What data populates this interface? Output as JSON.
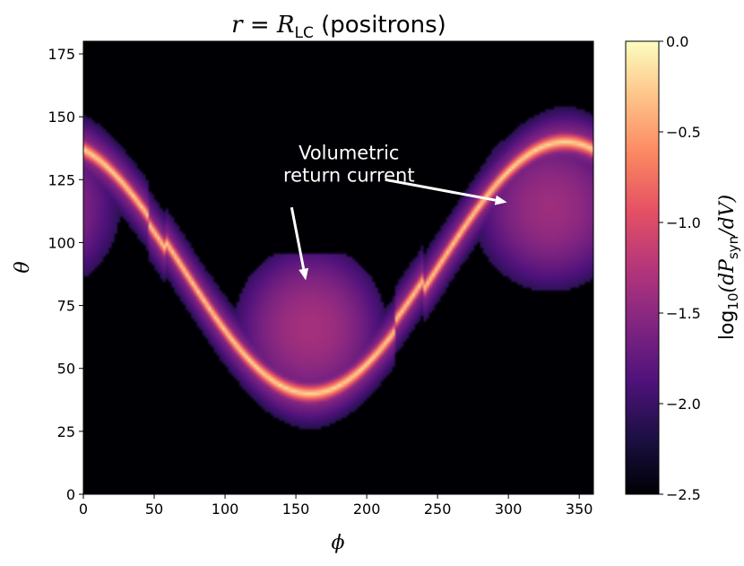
{
  "chart_data": {
    "type": "heatmap",
    "title_parts": {
      "var": "r",
      "eq": " = ",
      "big": "R",
      "sub": "LC",
      "rest": " (positrons)"
    },
    "xlabel": "ϕ",
    "ylabel": "θ",
    "xlim": [
      0,
      360
    ],
    "ylim": [
      0,
      180
    ],
    "x_ticks": [
      0,
      50,
      100,
      150,
      200,
      250,
      300,
      350
    ],
    "x_tick_labels": [
      "0",
      "50",
      "100",
      "150",
      "200",
      "250",
      "300",
      "350"
    ],
    "y_ticks": [
      0,
      25,
      50,
      75,
      100,
      125,
      150,
      175
    ],
    "y_tick_labels": [
      "0",
      "25",
      "50",
      "75",
      "100",
      "125",
      "150",
      "175"
    ],
    "colormap": "magma",
    "colormap_stops": [
      "#000004",
      "#1c1044",
      "#4f127b",
      "#812581",
      "#b5367a",
      "#e55064",
      "#fb8761",
      "#fec287",
      "#fcfdbf"
    ],
    "colorbar": {
      "range": [
        -2.5,
        0.0
      ],
      "ticks": [
        0.0,
        -0.5,
        -1.0,
        -1.5,
        -2.0,
        -2.5
      ],
      "tick_labels": [
        "0.0",
        "−0.5",
        "−1.0",
        "−1.5",
        "−2.0",
        "−2.5"
      ],
      "label_parts": {
        "pre": "log",
        "sub10": "10",
        "open": "(d",
        "P": "P",
        "subsyn": "syn",
        "close": "/dV)"
      }
    },
    "annotation": {
      "lines": [
        "Volumetric",
        "return current"
      ],
      "text_position": [
        140,
        126
      ],
      "arrows": [
        {
          "from": [
            147,
            114
          ],
          "to": [
            157,
            85
          ]
        },
        {
          "from": [
            213,
            125
          ],
          "to": [
            299,
            116
          ]
        }
      ]
    },
    "features": {
      "current_sheet": "bright wavy band crossing theta=90 near phi=50 and phi=232, min theta~40 at phi~160, max theta~140 at phi~340",
      "return_current_regions": [
        {
          "phi_center": 160,
          "theta_center": 62,
          "description": "volumetric return current, lower lobe"
        },
        {
          "phi_center": 330,
          "theta_center": 115,
          "description": "volumetric return current, upper lobe"
        }
      ],
      "background_level": -2.5
    }
  }
}
